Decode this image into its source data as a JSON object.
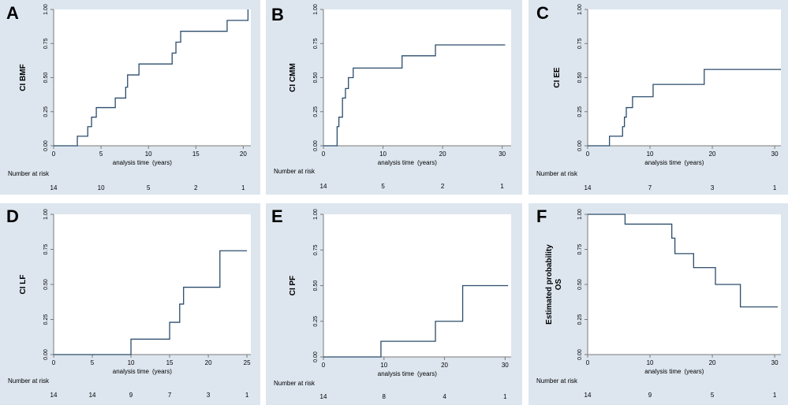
{
  "figure": {
    "xlabel": "analysis time",
    "xunit": "(years)",
    "risk_label": "Number at risk",
    "colors": {
      "background": "#dde6ef",
      "plot": "#ffffff",
      "line": "#2b4c6c",
      "axis": "#7a7a7a"
    }
  },
  "chart_data": [
    {
      "type": "line",
      "panel": "A",
      "ylabel": "CI BMF",
      "xlim": [
        0,
        20.8
      ],
      "xticks": [
        0,
        5,
        10,
        15,
        20
      ],
      "ylim": [
        0,
        1
      ],
      "yticks": [
        "0.00",
        "0.25",
        "0.50",
        "0.75",
        "1.00"
      ],
      "steps": [
        [
          0,
          0
        ],
        [
          2.5,
          0.07
        ],
        [
          3.6,
          0.14
        ],
        [
          4.0,
          0.21
        ],
        [
          4.5,
          0.28
        ],
        [
          6.5,
          0.35
        ],
        [
          7.6,
          0.43
        ],
        [
          7.8,
          0.52
        ],
        [
          9.0,
          0.6
        ],
        [
          12.5,
          0.68
        ],
        [
          12.9,
          0.76
        ],
        [
          13.4,
          0.84
        ],
        [
          18.3,
          0.92
        ],
        [
          20.5,
          1.0
        ]
      ],
      "x_end": 20.5,
      "risk_x": [
        0,
        5,
        10,
        15,
        20
      ],
      "risk": [
        "14",
        "10",
        "5",
        "2",
        "1"
      ]
    },
    {
      "type": "line",
      "panel": "B",
      "ylabel": "CI CMM",
      "xlim": [
        0,
        31.5
      ],
      "xticks": [
        0,
        10,
        20,
        30
      ],
      "ylim": [
        0,
        1
      ],
      "yticks": [
        "0.00",
        "0.25",
        "0.50",
        "0.75",
        "1.00"
      ],
      "steps": [
        [
          0,
          0
        ],
        [
          2.3,
          0.14
        ],
        [
          2.6,
          0.21
        ],
        [
          3.2,
          0.35
        ],
        [
          3.7,
          0.42
        ],
        [
          4.2,
          0.5
        ],
        [
          5.0,
          0.57
        ],
        [
          13.2,
          0.66
        ],
        [
          18.8,
          0.74
        ]
      ],
      "x_end": 30.5,
      "risk_x": [
        0,
        10,
        20,
        30
      ],
      "risk": [
        "14",
        "5",
        "2",
        "1"
      ]
    },
    {
      "type": "line",
      "panel": "C",
      "ylabel": "CI EE",
      "xlim": [
        0,
        31
      ],
      "xticks": [
        0,
        10,
        20,
        30
      ],
      "ylim": [
        0,
        1
      ],
      "yticks": [
        "0.00",
        "0.25",
        "0.50",
        "0.75",
        "1.00"
      ],
      "steps": [
        [
          0,
          0
        ],
        [
          3.5,
          0.07
        ],
        [
          5.6,
          0.14
        ],
        [
          5.9,
          0.21
        ],
        [
          6.2,
          0.28
        ],
        [
          7.2,
          0.36
        ],
        [
          10.5,
          0.45
        ],
        [
          18.7,
          0.56
        ]
      ],
      "x_end": 31,
      "risk_x": [
        0,
        10,
        20,
        30
      ],
      "risk": [
        "14",
        "7",
        "3",
        "1"
      ]
    },
    {
      "type": "line",
      "panel": "D",
      "ylabel": "CI LF",
      "xlim": [
        0,
        25.5
      ],
      "xticks": [
        0,
        5,
        10,
        15,
        20,
        25
      ],
      "ylim": [
        0,
        1
      ],
      "yticks": [
        "0.00",
        "0.25",
        "0.50",
        "0.75",
        "1.00"
      ],
      "steps": [
        [
          0,
          0
        ],
        [
          10.0,
          0.11
        ],
        [
          15.0,
          0.23
        ],
        [
          16.3,
          0.36
        ],
        [
          16.8,
          0.48
        ],
        [
          21.5,
          0.74
        ]
      ],
      "x_end": 25.0,
      "risk_x": [
        0,
        5,
        10,
        15,
        20,
        25
      ],
      "risk": [
        "14",
        "14",
        "9",
        "7",
        "3",
        "1"
      ]
    },
    {
      "type": "line",
      "panel": "E",
      "ylabel": "CI PF",
      "xlim": [
        0,
        31
      ],
      "xticks": [
        0,
        10,
        20,
        30
      ],
      "ylim": [
        0,
        1
      ],
      "yticks": [
        "0.00",
        "0.25",
        "0.50",
        "0.75",
        "1.00"
      ],
      "steps": [
        [
          0,
          0
        ],
        [
          9.5,
          0.11
        ],
        [
          18.5,
          0.25
        ],
        [
          23.0,
          0.5
        ]
      ],
      "x_end": 30.5,
      "risk_x": [
        0,
        10,
        20,
        30
      ],
      "risk": [
        "14",
        "8",
        "4",
        "1"
      ]
    },
    {
      "type": "line",
      "panel": "F",
      "ylabel": "Estimated probability",
      "ylabel2": "OS",
      "xlim": [
        0,
        31
      ],
      "xticks": [
        0,
        10,
        20,
        30
      ],
      "ylim": [
        0,
        1
      ],
      "yticks": [
        "0.00",
        "0.25",
        "0.50",
        "0.75",
        "1.00"
      ],
      "steps": [
        [
          0,
          1.0
        ],
        [
          6.0,
          0.93
        ],
        [
          13.5,
          0.83
        ],
        [
          14.0,
          0.72
        ],
        [
          17.0,
          0.62
        ],
        [
          20.5,
          0.5
        ],
        [
          24.5,
          0.34
        ]
      ],
      "x_end": 30.5,
      "risk_x": [
        0,
        10,
        20,
        30
      ],
      "risk": [
        "14",
        "9",
        "5",
        "1"
      ]
    }
  ]
}
